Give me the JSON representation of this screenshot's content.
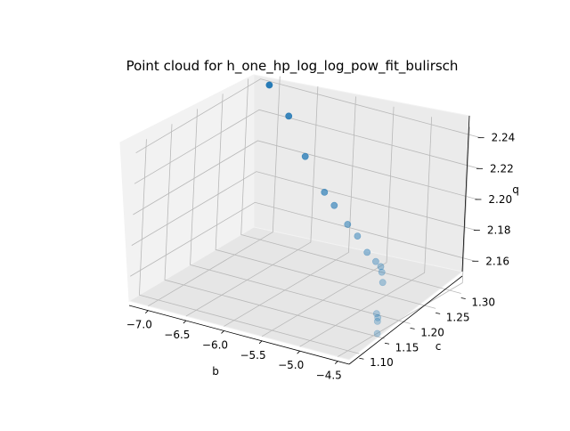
{
  "chart_data": {
    "type": "scatter",
    "projection": "3d",
    "title": "Point cloud for h_one_hp_log_log_pow_fit_bulirsch",
    "xlabel": "b",
    "ylabel": "c",
    "zlabel": "q",
    "x_ticks": [
      "−7.0",
      "−6.5",
      "−6.0",
      "−5.5",
      "−5.0",
      "−4.5"
    ],
    "y_ticks": [
      "1.10",
      "1.15",
      "1.20",
      "1.25",
      "1.30"
    ],
    "z_ticks": [
      "2.16",
      "2.18",
      "2.20",
      "2.22",
      "2.24"
    ],
    "grid": true,
    "marker_color": "#1f77b4",
    "points": [
      {
        "b": -7.1,
        "c": 1.32,
        "q": 2.239
      },
      {
        "b": -6.7,
        "c": 1.3,
        "q": 2.228
      },
      {
        "b": -6.3,
        "c": 1.275,
        "q": 2.212
      },
      {
        "b": -5.9,
        "c": 1.255,
        "q": 2.198
      },
      {
        "b": -5.7,
        "c": 1.245,
        "q": 2.194
      },
      {
        "b": -5.45,
        "c": 1.235,
        "q": 2.187
      },
      {
        "b": -5.25,
        "c": 1.225,
        "q": 2.184
      },
      {
        "b": -5.05,
        "c": 1.215,
        "q": 2.178
      },
      {
        "b": -4.9,
        "c": 1.21,
        "q": 2.175
      },
      {
        "b": -4.8,
        "c": 1.205,
        "q": 2.174
      },
      {
        "b": -4.75,
        "c": 1.2,
        "q": 2.172
      },
      {
        "b": -4.7,
        "c": 1.195,
        "q": 2.167
      },
      {
        "b": -4.6,
        "c": 1.17,
        "q": 2.153
      },
      {
        "b": -4.55,
        "c": 1.165,
        "q": 2.152
      },
      {
        "b": -4.52,
        "c": 1.16,
        "q": 2.151
      },
      {
        "b": -4.45,
        "c": 1.15,
        "q": 2.146
      }
    ]
  }
}
